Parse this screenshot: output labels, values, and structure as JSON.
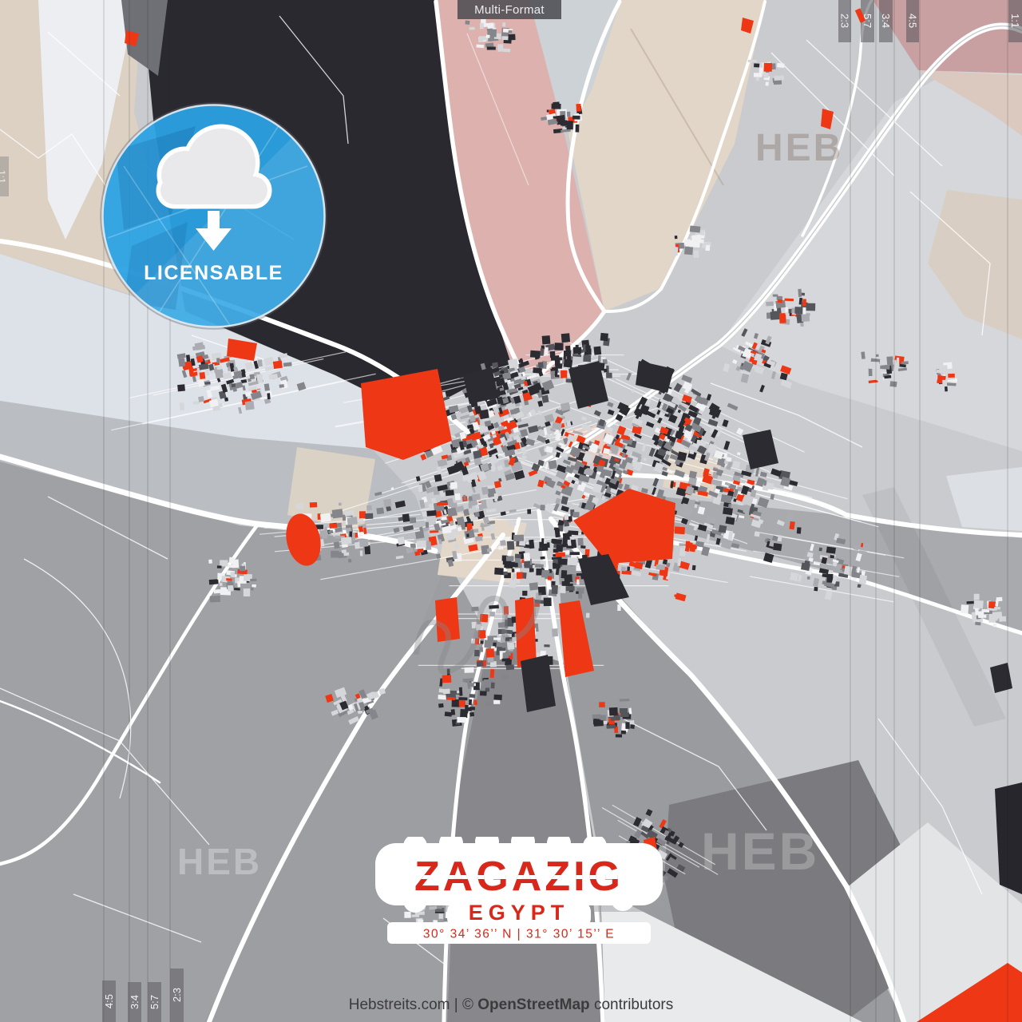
{
  "chip": {
    "label": "Multi-Format"
  },
  "badge": {
    "label": "LICENSABLE"
  },
  "ratio_markers": {
    "top_right": [
      "2:3",
      "5:7",
      "3:4",
      "4:5",
      "1:1"
    ],
    "bottom_left": [
      "4:5",
      "3:4",
      "5:7",
      "2:3"
    ],
    "left_edge": "1:1"
  },
  "title": {
    "city": "ZAGAZIG",
    "country": "EGYPT",
    "coordinates": "30° 34’ 36’’ N | 31° 30’ 15’’ E"
  },
  "watermark": {
    "logo": "HEB"
  },
  "footer": {
    "site": "Hebstreits.com",
    "separator": "|",
    "copyright_symbol": "©",
    "attribution_name": "OpenStreetMap",
    "attribution_suffix": "contributors"
  },
  "colors": {
    "accent_red": "#ee3715",
    "badge_blue": "#2aa3e3",
    "dark_region": "#29292f",
    "pink_region": "#dcb1ae",
    "beige_region": "#e0d5c7",
    "road": "#ffffff"
  }
}
